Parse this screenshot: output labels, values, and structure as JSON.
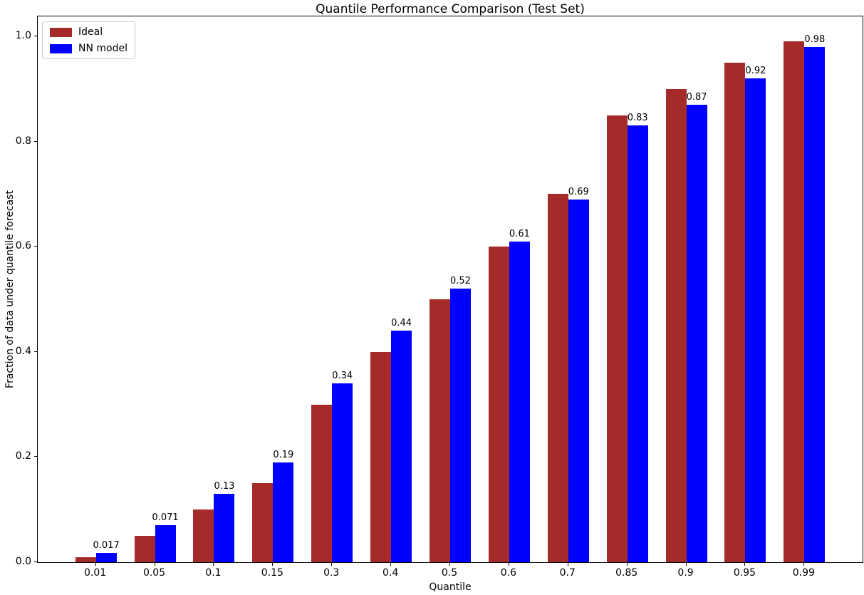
{
  "chart_data": {
    "type": "bar",
    "title": "Quantile Performance Comparison (Test Set)",
    "xlabel": "Quantile",
    "ylabel": "Fraction of data under quantile forecast",
    "categories": [
      "0.01",
      "0.05",
      "0.1",
      "0.15",
      "0.3",
      "0.4",
      "0.5",
      "0.6",
      "0.7",
      "0.85",
      "0.9",
      "0.95",
      "0.99"
    ],
    "series": [
      {
        "name": "Ideal",
        "color": "#A52A2A",
        "values": [
          0.01,
          0.05,
          0.1,
          0.15,
          0.3,
          0.4,
          0.5,
          0.6,
          0.7,
          0.85,
          0.9,
          0.95,
          0.99
        ]
      },
      {
        "name": "NN model",
        "color": "#0000FF",
        "values": [
          0.017,
          0.071,
          0.13,
          0.19,
          0.34,
          0.44,
          0.52,
          0.61,
          0.69,
          0.83,
          0.87,
          0.92,
          0.98
        ]
      }
    ],
    "bar_labels": [
      "0.017",
      "0.071",
      "0.13",
      "0.19",
      "0.34",
      "0.44",
      "0.52",
      "0.61",
      "0.69",
      "0.83",
      "0.87",
      "0.92",
      "0.98"
    ],
    "yticks": [
      "0.0",
      "0.2",
      "0.4",
      "0.6",
      "0.8",
      "1.0"
    ],
    "ylim": [
      0,
      1.04
    ],
    "legend_position": "upper left",
    "grid": false,
    "annotation_series": "NN model"
  }
}
